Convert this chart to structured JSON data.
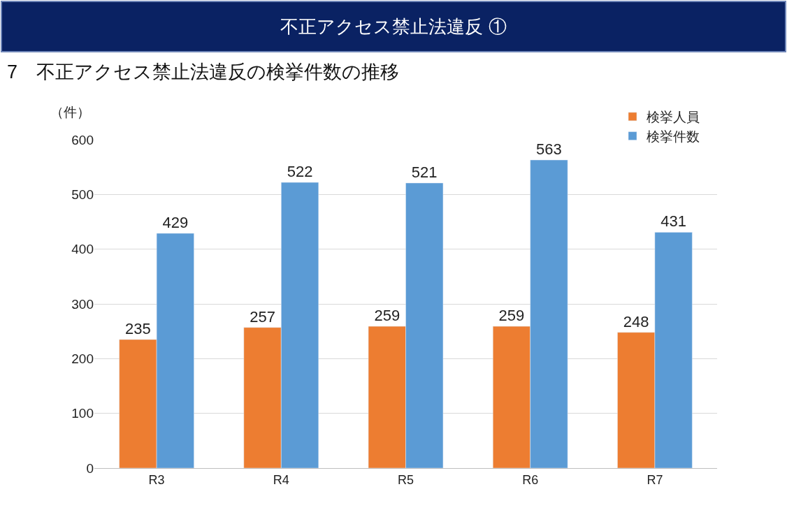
{
  "chart_data": {
    "type": "bar",
    "title": "不正アクセス禁止法違反 ①",
    "subtitle": "7　不正アクセス禁止法違反の検挙件数の推移",
    "ylabel": "（件）",
    "categories": [
      "R3",
      "R4",
      "R5",
      "R6",
      "R7"
    ],
    "series": [
      {
        "name": "検挙人員",
        "color": "#ed7d31",
        "values": [
          235,
          257,
          259,
          259,
          248
        ]
      },
      {
        "name": "検挙件数",
        "color": "#5b9bd5",
        "values": [
          429,
          522,
          521,
          563,
          431
        ]
      }
    ],
    "ylim": [
      0,
      600
    ],
    "yticks": [
      0,
      100,
      200,
      300,
      400,
      500,
      600
    ],
    "grid": "y",
    "legend": "top right",
    "data_labels": true
  }
}
